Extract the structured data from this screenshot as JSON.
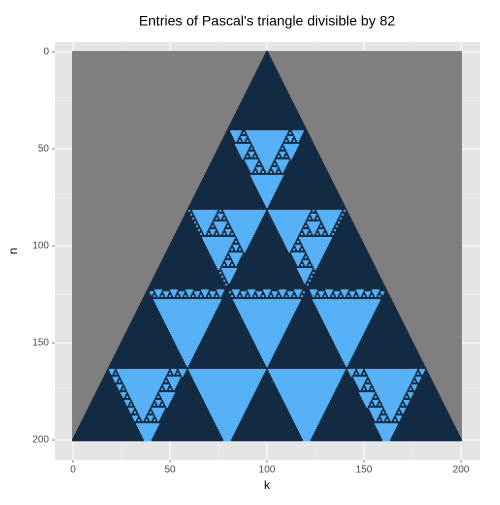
{
  "chart_data": {
    "type": "pascal-tile",
    "title": "Entries of Pascal's triangle divisible by 82",
    "xlabel": "k",
    "ylabel": "n",
    "divisor": 82,
    "xlim": [
      0,
      200
    ],
    "ylim": [
      0,
      200
    ],
    "xticks": [
      0,
      50,
      100,
      150,
      200
    ],
    "yticks": [
      0,
      50,
      100,
      150,
      200
    ],
    "y_reversed": true,
    "colors": {
      "divisible": "#56B1F7",
      "not_divisible": "#132B43",
      "na": "#7F7F7F"
    },
    "grid": true
  }
}
